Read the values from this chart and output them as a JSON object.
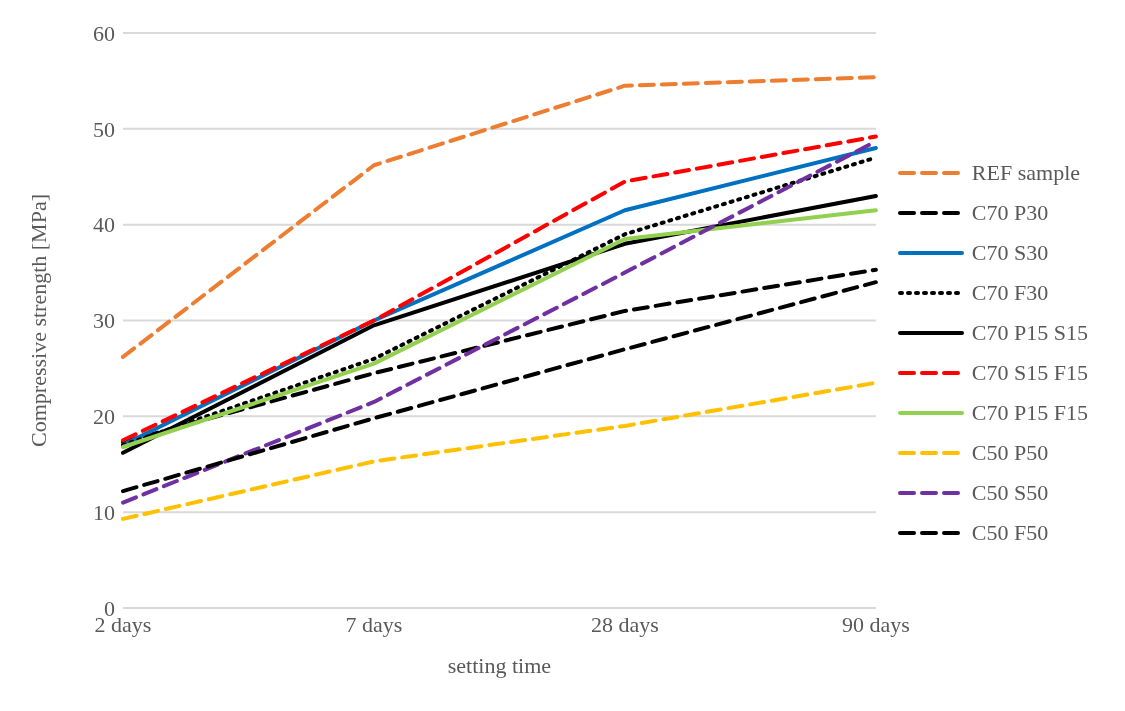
{
  "chart_data": {
    "type": "line",
    "xlabel": "setting time",
    "ylabel": "Compressive strength [MPa]",
    "categories": [
      "2 days",
      "7 days",
      "28 days",
      "90 days"
    ],
    "ylim": [
      0,
      60
    ],
    "yticks": [
      0,
      10,
      20,
      30,
      40,
      50,
      60
    ],
    "grid": "y",
    "legend": "right",
    "marker": "none",
    "series": [
      {
        "name": "REF sample",
        "color": "#ed7d31",
        "line_style": "dashed",
        "values": [
          26.2,
          46.2,
          54.5,
          55.4
        ]
      },
      {
        "name": "C70 P30",
        "color": "#000000",
        "line_style": "dashed",
        "values": [
          17.3,
          24.5,
          31,
          35.3
        ]
      },
      {
        "name": "C70 S30",
        "color": "#0070c0",
        "line_style": "solid",
        "values": [
          17,
          30,
          41.5,
          48
        ]
      },
      {
        "name": "C70 F30",
        "color": "#000000",
        "line_style": "dotted",
        "values": [
          17,
          26,
          39,
          47
        ]
      },
      {
        "name": "C70 P15 S15",
        "color": "#000000",
        "line_style": "solid",
        "values": [
          16.2,
          29.5,
          38,
          43
        ]
      },
      {
        "name": "C70 S15 F15",
        "color": "#ff0000",
        "line_style": "dashed",
        "values": [
          17.5,
          30,
          44.5,
          49.2
        ]
      },
      {
        "name": "C70 P15 F15",
        "color": "#92d050",
        "line_style": "solid",
        "values": [
          16.8,
          25.5,
          38.5,
          41.5
        ]
      },
      {
        "name": "C50 P50",
        "color": "#ffc000",
        "line_style": "dashed",
        "values": [
          9.3,
          15.3,
          19,
          23.5
        ]
      },
      {
        "name": "C50 S50",
        "color": "#7030a0",
        "line_style": "dashed",
        "values": [
          11,
          21.5,
          35,
          48.7
        ]
      },
      {
        "name": "C50 F50",
        "color": "#000000",
        "line_style": "dashed",
        "values": [
          12.2,
          19.8,
          27,
          34
        ]
      }
    ]
  }
}
